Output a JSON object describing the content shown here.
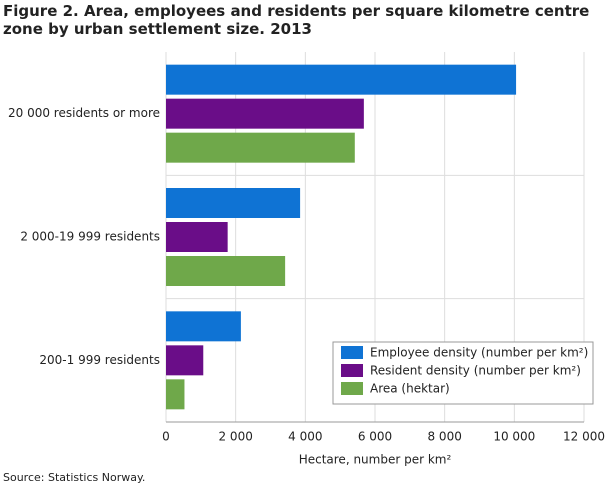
{
  "chart_data": {
    "type": "hbar",
    "title": "Figure 2. Area, employees and residents per square kilometre centre zone by urban settlement size. 2013",
    "categories": [
      "20 000 residents or more",
      "2 000-19 999 residents",
      "200-1 999 residents"
    ],
    "series": [
      {
        "name": "Employee density (number per km²)",
        "color": "#0f73d4",
        "values": [
          10050,
          3850,
          2150
        ]
      },
      {
        "name": "Resident density  (number per km²)",
        "color": "#6a0d88",
        "values": [
          5680,
          1770,
          1070
        ]
      },
      {
        "name": "Area (hektar)",
        "color": "#6fa84a",
        "values": [
          5420,
          3420,
          530
        ]
      }
    ],
    "xlabel": "Hectare, number per km²",
    "xlim": [
      0,
      12000
    ],
    "xticks": [
      0,
      {
        "value": 2000,
        "label": "2 000"
      },
      {
        "value": 4000,
        "label": "4 000"
      },
      {
        "value": 6000,
        "label": "6 000"
      },
      {
        "value": 8000,
        "label": "8 000"
      },
      {
        "value": 10000,
        "label": "10 000"
      },
      {
        "value": 12000,
        "label": "12 000"
      }
    ],
    "grid": true,
    "legend": "lower right",
    "source": "Source: Statistics Norway."
  }
}
